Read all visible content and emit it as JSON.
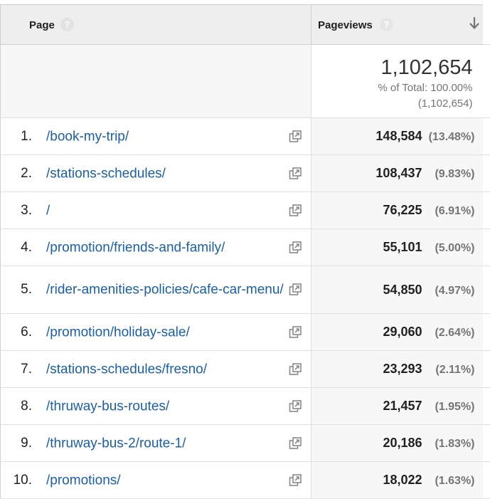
{
  "header": {
    "page_label": "Page",
    "pageviews_label": "Pageviews",
    "help_glyph": "?",
    "sort_icon": "arrow-down-icon"
  },
  "totals": {
    "value": "1,102,654",
    "pct_label": "% of Total: 100.00%",
    "pct_detail": "(1,102,654)"
  },
  "rows": [
    {
      "rank": "1.",
      "page": "/book-my-trip/",
      "views": "148,584",
      "pct": "(13.48%)"
    },
    {
      "rank": "2.",
      "page": "/stations-schedules/",
      "views": "108,437",
      "pct": "(9.83%)"
    },
    {
      "rank": "3.",
      "page": "/",
      "views": "76,225",
      "pct": "(6.91%)"
    },
    {
      "rank": "4.",
      "page": "/promotion/friends-and-family/",
      "views": "55,101",
      "pct": "(5.00%)"
    },
    {
      "rank": "5.",
      "page": "/rider-amenities-policies/cafe-car-menu/",
      "views": "54,850",
      "pct": "(4.97%)"
    },
    {
      "rank": "6.",
      "page": "/promotion/holiday-sale/",
      "views": "29,060",
      "pct": "(2.64%)"
    },
    {
      "rank": "7.",
      "page": "/stations-schedules/fresno/",
      "views": "23,293",
      "pct": "(2.11%)"
    },
    {
      "rank": "8.",
      "page": "/thruway-bus-routes/",
      "views": "21,457",
      "pct": "(1.95%)"
    },
    {
      "rank": "9.",
      "page": "/thruway-bus-2/route-1/",
      "views": "20,186",
      "pct": "(1.83%)"
    },
    {
      "rank": "10.",
      "page": "/promotions/",
      "views": "18,022",
      "pct": "(1.63%)"
    }
  ],
  "colors": {
    "link": "#1a5fa7",
    "header_bg": "#eeeeee",
    "metric_bg": "#f7f7f7"
  }
}
